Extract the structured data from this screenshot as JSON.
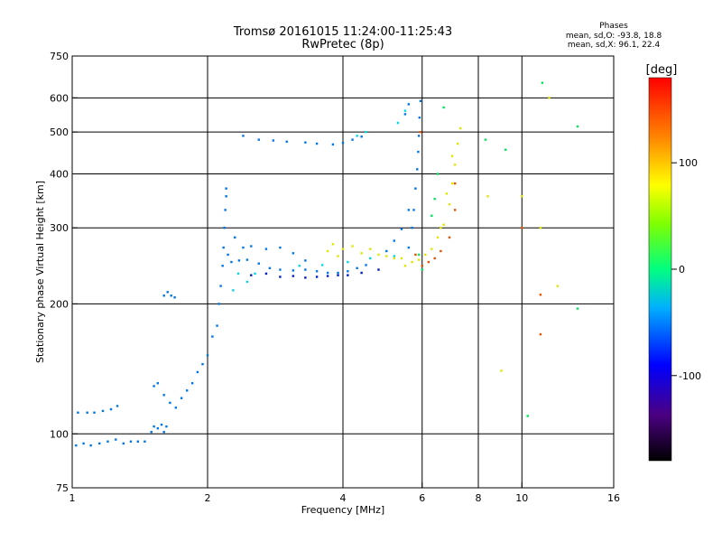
{
  "header": {
    "title_line1": "Tromsø 20161015 11:24:00-11:25:43",
    "title_line2": "RwPretec (8p)",
    "phases_title": "Phases",
    "phases_o": "mean, sd,O: -93.8, 18.8",
    "phases_x": "mean, sd,X:  96.1, 22.4"
  },
  "colorbar": {
    "unit_label": "[deg]",
    "range": [
      -180,
      180
    ],
    "ticks": [
      {
        "value": 100,
        "label": "100"
      },
      {
        "value": 0,
        "label": "0"
      },
      {
        "value": -100,
        "label": "-100"
      }
    ]
  },
  "chart_data": {
    "type": "scatter",
    "title": "Tromsø 20161015 11:24:00-11:25:43",
    "subtitle": "RwPretec (8p)",
    "xlabel": "Frequency [MHz]",
    "ylabel": "Stationary phase Virtual Height [km]",
    "x_scale": "log",
    "y_scale": "log",
    "xlim": [
      1,
      16
    ],
    "ylim": [
      75,
      750
    ],
    "grid": true,
    "x_ticks": [
      {
        "value": 1,
        "label": "1"
      },
      {
        "value": 2,
        "label": "2"
      },
      {
        "value": 4,
        "label": "4"
      },
      {
        "value": 6,
        "label": "6"
      },
      {
        "value": 8,
        "label": "8"
      },
      {
        "value": 10,
        "label": "10"
      },
      {
        "value": 16,
        "label": "16"
      }
    ],
    "y_ticks": [
      {
        "value": 75,
        "label": "75"
      },
      {
        "value": 100,
        "label": "100"
      },
      {
        "value": 200,
        "label": "200"
      },
      {
        "value": 300,
        "label": "300"
      },
      {
        "value": 400,
        "label": "400"
      },
      {
        "value": 500,
        "label": "500"
      },
      {
        "value": 600,
        "label": "600"
      },
      {
        "value": 750,
        "label": "750"
      }
    ],
    "x_grid": [
      2,
      4,
      6,
      8,
      10
    ],
    "y_grid": [
      100,
      200,
      300,
      400,
      500,
      600
    ],
    "series": [
      {
        "phase_deg": -110,
        "points": [
          [
            1.02,
            94
          ],
          [
            1.06,
            95
          ],
          [
            1.1,
            94
          ],
          [
            1.15,
            95
          ],
          [
            1.2,
            96
          ],
          [
            1.25,
            97
          ],
          [
            1.3,
            95
          ],
          [
            1.35,
            96
          ],
          [
            1.4,
            96
          ],
          [
            1.45,
            96
          ],
          [
            1.03,
            112
          ],
          [
            1.08,
            112
          ],
          [
            1.12,
            112
          ],
          [
            1.17,
            113
          ],
          [
            1.22,
            114
          ],
          [
            1.26,
            116
          ],
          [
            1.5,
            101
          ],
          [
            1.52,
            104
          ],
          [
            1.55,
            103
          ],
          [
            1.58,
            105
          ],
          [
            1.6,
            101
          ],
          [
            1.62,
            104
          ],
          [
            1.52,
            129
          ],
          [
            1.55,
            131
          ],
          [
            1.6,
            123
          ],
          [
            1.65,
            118
          ],
          [
            1.7,
            115
          ],
          [
            1.75,
            121
          ],
          [
            1.8,
            126
          ],
          [
            1.85,
            131
          ],
          [
            1.9,
            139
          ],
          [
            1.95,
            145
          ],
          [
            2.0,
            152
          ],
          [
            2.05,
            168
          ],
          [
            2.1,
            178
          ],
          [
            1.6,
            209
          ],
          [
            1.63,
            213
          ],
          [
            1.66,
            209
          ],
          [
            1.69,
            207
          ],
          [
            2.12,
            200
          ],
          [
            2.14,
            220
          ],
          [
            2.16,
            245
          ],
          [
            2.17,
            270
          ],
          [
            2.18,
            300
          ],
          [
            2.19,
            330
          ],
          [
            2.2,
            355
          ],
          [
            2.2,
            370
          ],
          [
            2.22,
            260
          ],
          [
            2.26,
            250
          ],
          [
            2.35,
            252
          ],
          [
            2.45,
            253
          ],
          [
            2.6,
            248
          ],
          [
            2.75,
            242
          ],
          [
            2.9,
            240
          ],
          [
            3.1,
            239
          ],
          [
            3.3,
            240
          ],
          [
            3.5,
            238
          ],
          [
            3.7,
            236
          ],
          [
            3.9,
            236
          ],
          [
            4.1,
            238
          ],
          [
            4.3,
            242
          ],
          [
            4.5,
            246
          ],
          [
            2.3,
            285
          ],
          [
            2.4,
            270
          ],
          [
            2.5,
            272
          ],
          [
            2.7,
            268
          ],
          [
            2.9,
            270
          ],
          [
            3.1,
            262
          ],
          [
            3.3,
            252
          ],
          [
            2.4,
            490
          ],
          [
            2.6,
            480
          ],
          [
            2.8,
            478
          ],
          [
            3.0,
            475
          ],
          [
            3.3,
            473
          ],
          [
            3.5,
            470
          ],
          [
            3.8,
            468
          ],
          [
            4.0,
            472
          ],
          [
            4.2,
            480
          ],
          [
            4.4,
            488
          ],
          [
            5.6,
            270
          ],
          [
            5.7,
            300
          ],
          [
            5.75,
            330
          ],
          [
            5.8,
            370
          ],
          [
            5.85,
            410
          ],
          [
            5.88,
            450
          ],
          [
            5.9,
            490
          ],
          [
            5.92,
            540
          ],
          [
            5.95,
            590
          ],
          [
            5.5,
            550
          ],
          [
            5.6,
            580
          ],
          [
            5.0,
            265
          ],
          [
            5.2,
            280
          ],
          [
            5.4,
            298
          ],
          [
            5.6,
            330
          ]
        ]
      },
      {
        "phase_deg": -75,
        "points": [
          [
            2.28,
            215
          ],
          [
            2.34,
            235
          ],
          [
            2.45,
            225
          ],
          [
            2.55,
            235
          ],
          [
            3.2,
            245
          ],
          [
            3.6,
            246
          ],
          [
            4.1,
            250
          ],
          [
            4.6,
            255
          ],
          [
            5.2,
            258
          ],
          [
            4.3,
            490
          ],
          [
            4.5,
            500
          ],
          [
            5.3,
            525
          ],
          [
            5.5,
            560
          ]
        ]
      },
      {
        "phase_deg": -140,
        "points": [
          [
            2.5,
            233
          ],
          [
            2.7,
            235
          ],
          [
            2.9,
            231
          ],
          [
            3.1,
            232
          ],
          [
            3.3,
            230
          ],
          [
            3.5,
            231
          ],
          [
            3.7,
            232
          ],
          [
            3.9,
            233
          ],
          [
            4.1,
            233
          ],
          [
            4.4,
            236
          ],
          [
            4.8,
            240
          ]
        ]
      },
      {
        "phase_deg": -20,
        "points": [
          [
            5.9,
            260
          ],
          [
            6.0,
            240
          ],
          [
            6.3,
            320
          ],
          [
            6.4,
            350
          ],
          [
            6.5,
            400
          ],
          [
            6.7,
            570
          ],
          [
            8.3,
            480
          ],
          [
            9.2,
            455
          ],
          [
            11.1,
            650
          ],
          [
            13.3,
            515
          ],
          [
            13.3,
            195
          ],
          [
            10.3,
            110
          ]
        ]
      },
      {
        "phase_deg": 95,
        "points": [
          [
            3.7,
            265
          ],
          [
            3.8,
            275
          ],
          [
            3.9,
            258
          ],
          [
            4.0,
            268
          ],
          [
            4.2,
            272
          ],
          [
            4.4,
            262
          ],
          [
            4.6,
            268
          ],
          [
            4.8,
            260
          ],
          [
            5.0,
            258
          ],
          [
            5.2,
            255
          ],
          [
            5.4,
            255
          ],
          [
            5.5,
            245
          ],
          [
            5.7,
            250
          ],
          [
            5.9,
            253
          ],
          [
            6.1,
            260
          ],
          [
            6.3,
            268
          ],
          [
            6.5,
            285
          ],
          [
            6.7,
            305
          ],
          [
            6.9,
            340
          ],
          [
            7.0,
            380
          ],
          [
            7.1,
            420
          ],
          [
            7.2,
            470
          ],
          [
            7.3,
            510
          ],
          [
            6.6,
            300
          ],
          [
            6.8,
            360
          ],
          [
            7.0,
            440
          ],
          [
            8.4,
            355
          ],
          [
            9.0,
            140
          ],
          [
            10.0,
            355
          ],
          [
            11.0,
            300
          ],
          [
            11.5,
            600
          ],
          [
            12.0,
            220
          ]
        ]
      },
      {
        "phase_deg": 150,
        "points": [
          [
            6.0,
            245
          ],
          [
            6.2,
            250
          ],
          [
            6.4,
            255
          ],
          [
            6.6,
            265
          ],
          [
            6.9,
            285
          ],
          [
            7.1,
            330
          ],
          [
            7.1,
            380
          ],
          [
            5.8,
            260
          ],
          [
            5.95,
            500
          ],
          [
            10.0,
            300
          ],
          [
            11.0,
            210
          ],
          [
            11.0,
            170
          ]
        ]
      }
    ]
  }
}
